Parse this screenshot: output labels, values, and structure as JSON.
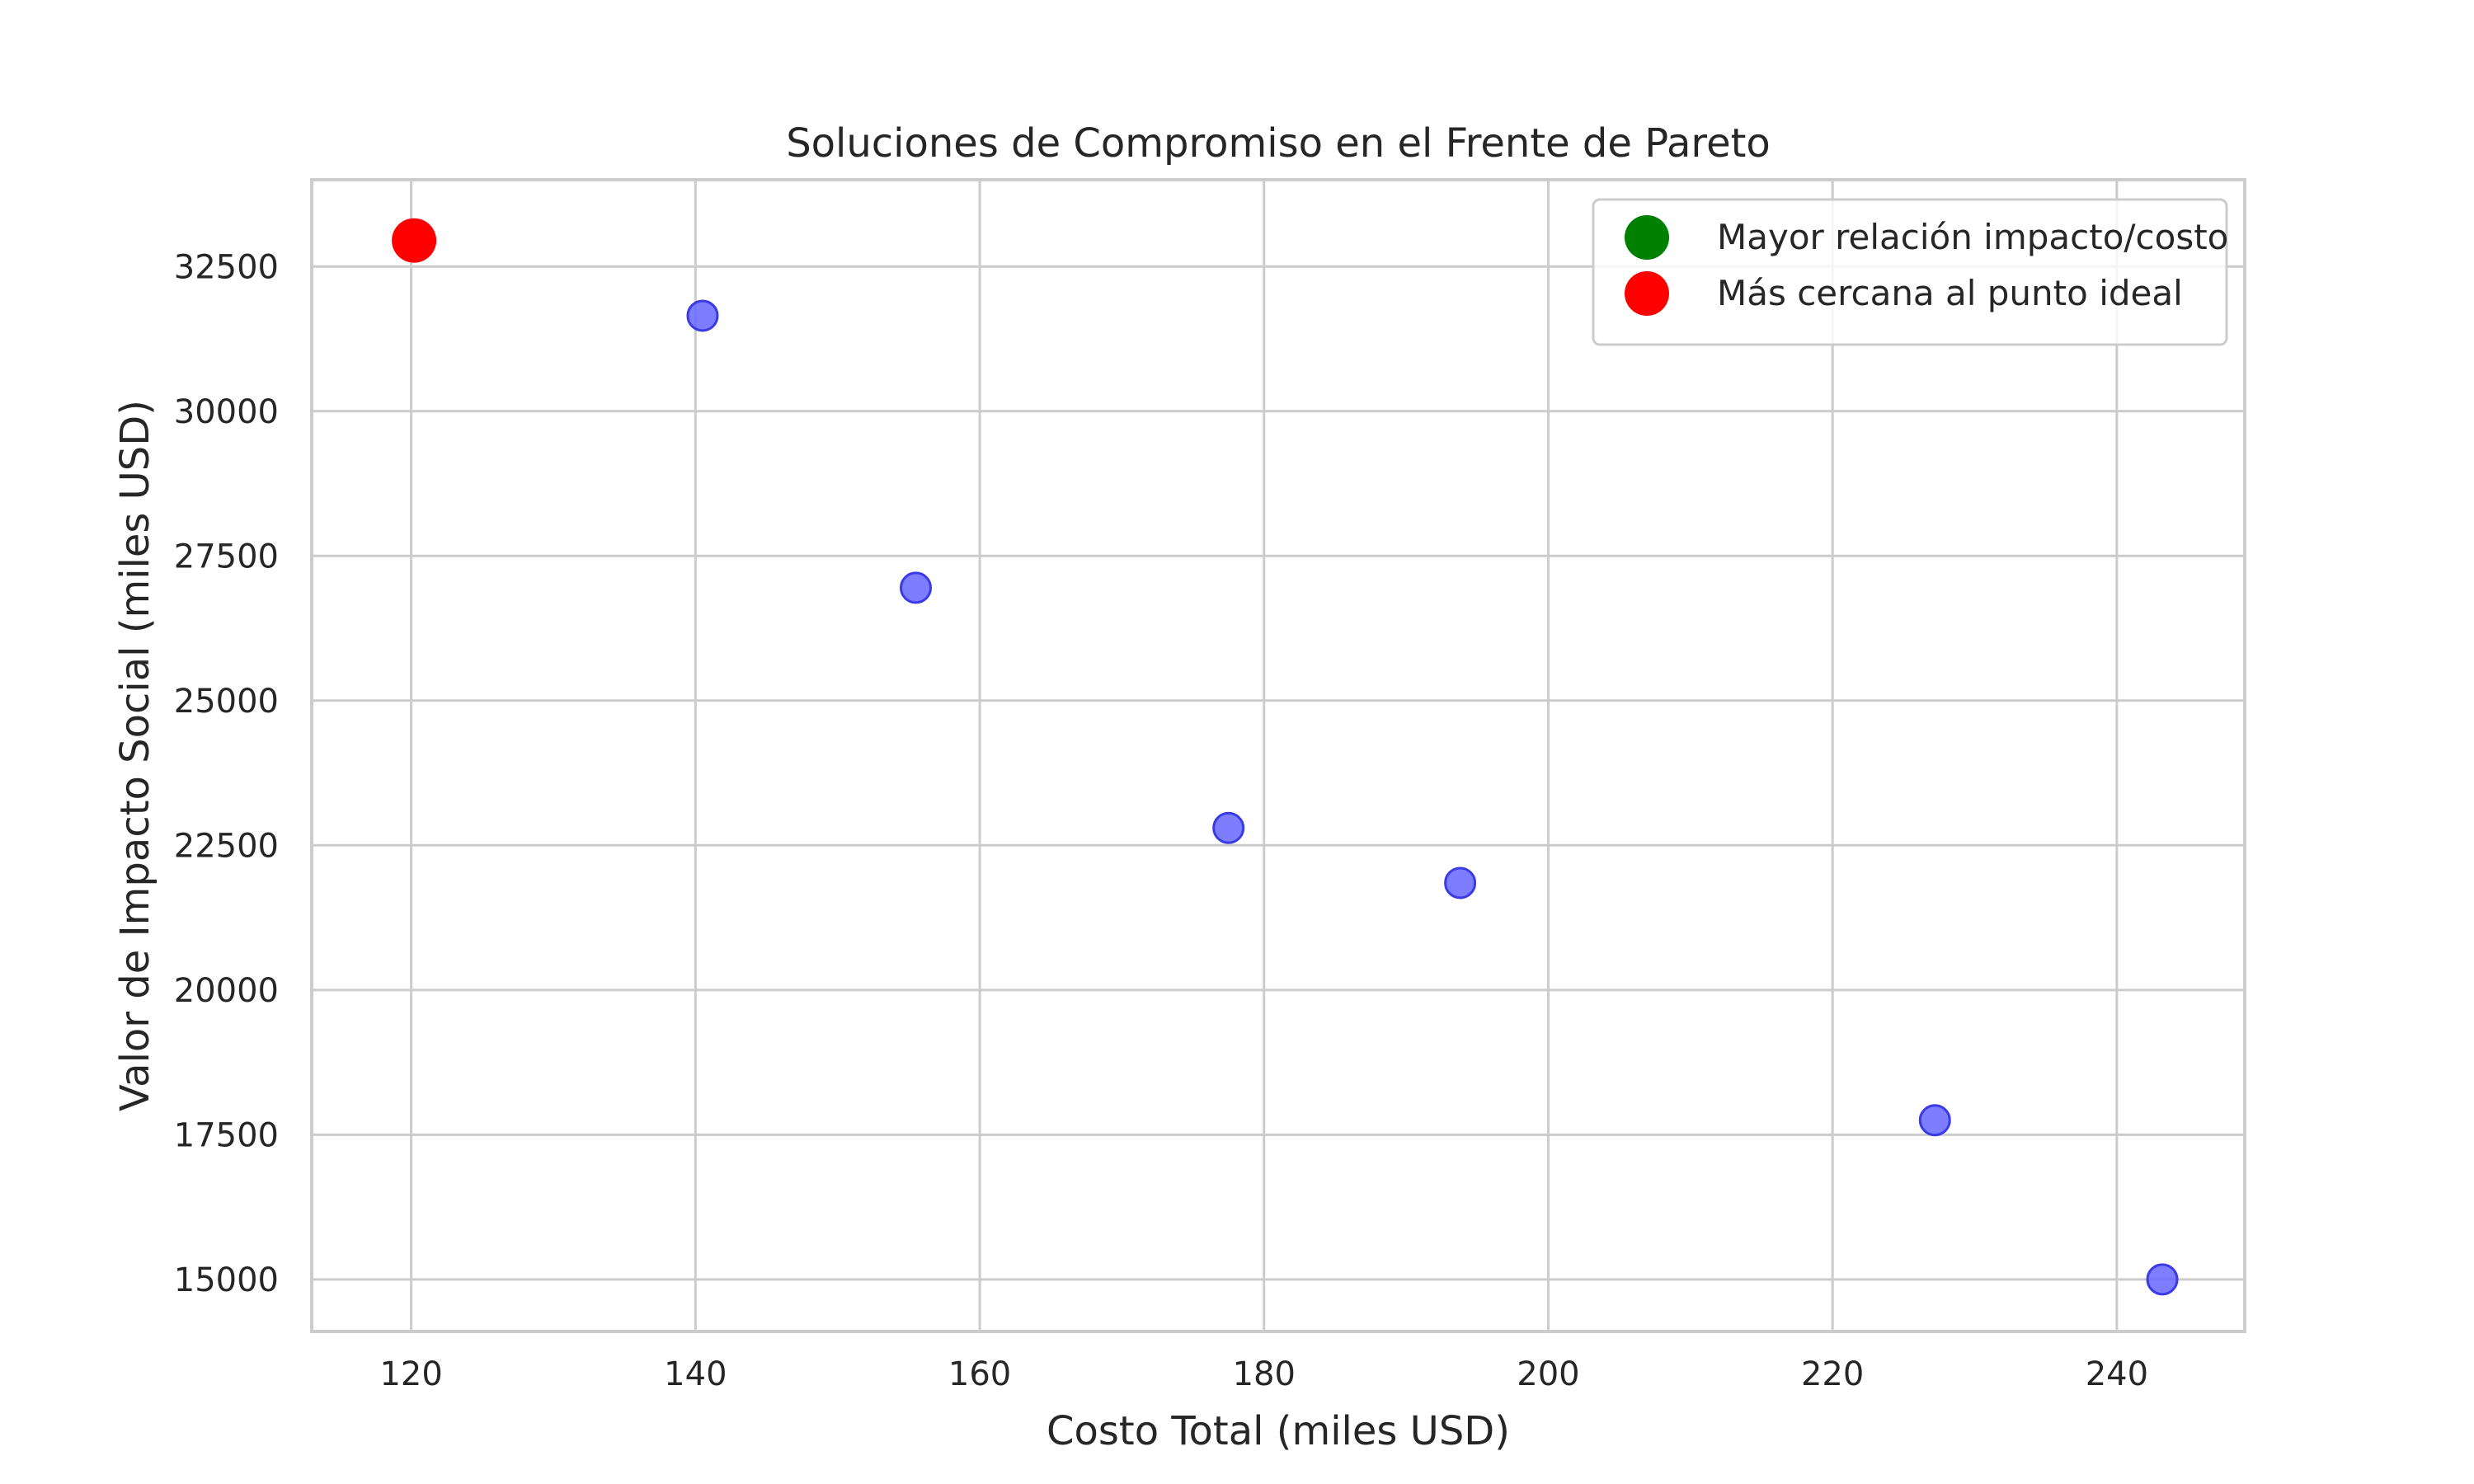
{
  "chart_data": {
    "type": "scatter",
    "title": "Soluciones de Compromiso en el Frente de Pareto",
    "xlabel": "Costo Total (miles USD)",
    "ylabel": "Valor de Impacto Social (miles USD)",
    "xlim": [
      113,
      249
    ],
    "ylim": [
      14100,
      34000
    ],
    "xticks": [
      120,
      140,
      160,
      180,
      200,
      220,
      240
    ],
    "yticks": [
      15000,
      17500,
      20000,
      22500,
      25000,
      27500,
      30000,
      32500
    ],
    "grid": true,
    "legend_position": "top-right",
    "series": [
      {
        "role": "pareto-points",
        "color": "#6666ff",
        "points": [
          {
            "x": 140.5,
            "y": 31650
          },
          {
            "x": 155.5,
            "y": 26950
          },
          {
            "x": 177.5,
            "y": 22800
          },
          {
            "x": 193.8,
            "y": 21850
          },
          {
            "x": 227.2,
            "y": 17750
          },
          {
            "x": 243.2,
            "y": 15000
          }
        ]
      },
      {
        "name": "Mayor relación impacto/costo",
        "color": "#008000",
        "points": []
      },
      {
        "name": "Más cercana al punto ideal",
        "color": "#ff0000",
        "points": [
          {
            "x": 120.2,
            "y": 32950
          }
        ]
      }
    ]
  }
}
